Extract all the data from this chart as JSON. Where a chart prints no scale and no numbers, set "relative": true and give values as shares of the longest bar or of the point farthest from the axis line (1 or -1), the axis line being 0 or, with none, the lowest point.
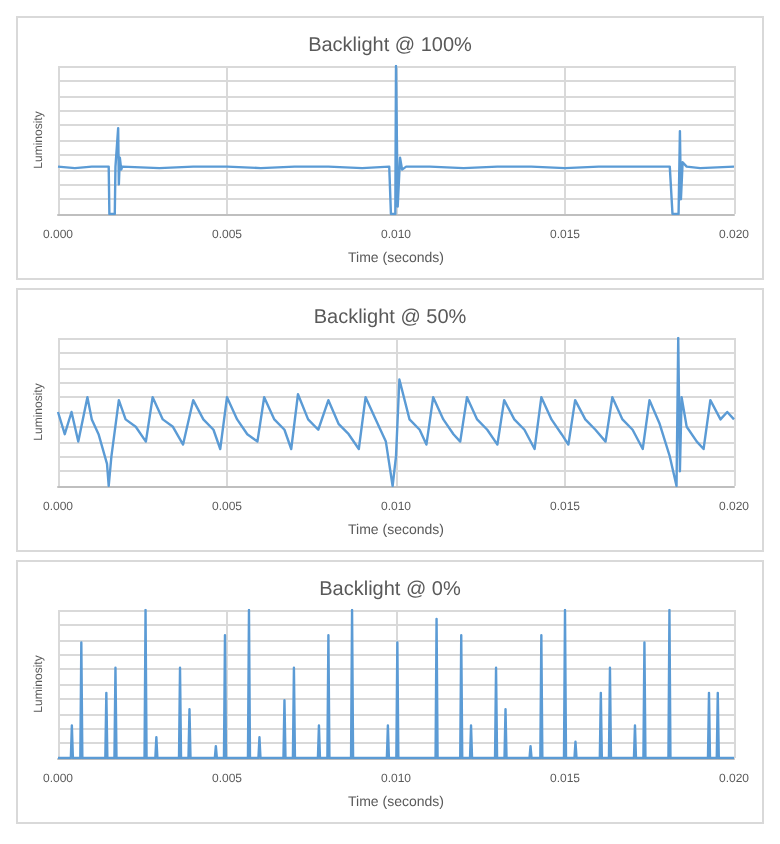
{
  "chart_data": [
    {
      "type": "line",
      "title": "Backlight @ 100%",
      "xlabel": "Time (seconds)",
      "ylabel": "Luminosity",
      "relative": true,
      "color": "#5b9bd5",
      "grid": true,
      "xlim": [
        0,
        0.02
      ],
      "xticks": [
        {
          "value": 0,
          "label": "0.000"
        },
        {
          "value": 0.005,
          "label": "0.005"
        },
        {
          "value": 0.01,
          "label": "0.010"
        },
        {
          "value": 0.015,
          "label": "0.015"
        },
        {
          "value": 0.02,
          "label": "0.020"
        }
      ],
      "x": [
        0,
        0.0005,
        0.001,
        0.0015,
        0.00152,
        0.00168,
        0.0017,
        0.00178,
        0.0018,
        0.00183,
        0.00187,
        0.0019,
        0.003,
        0.004,
        0.005,
        0.006,
        0.007,
        0.008,
        0.009,
        0.0098,
        0.00985,
        0.00998,
        0.01,
        0.01005,
        0.01012,
        0.01018,
        0.0103,
        0.011,
        0.012,
        0.013,
        0.014,
        0.015,
        0.016,
        0.017,
        0.0181,
        0.01818,
        0.01836,
        0.0184,
        0.01843,
        0.01848,
        0.0186,
        0.019,
        0.02
      ],
      "values": [
        0.32,
        0.31,
        0.32,
        0.32,
        0,
        0,
        0.32,
        0.58,
        0.2,
        0.38,
        0.3,
        0.32,
        0.31,
        0.32,
        0.32,
        0.31,
        0.32,
        0.32,
        0.31,
        0.32,
        0,
        0,
        1,
        0.05,
        0.38,
        0.3,
        0.32,
        0.32,
        0.31,
        0.32,
        0.32,
        0.31,
        0.32,
        0.32,
        0.32,
        0,
        0,
        0.56,
        0.1,
        0.35,
        0.32,
        0.31,
        0.32
      ]
    },
    {
      "type": "line",
      "title": "Backlight @ 50%",
      "xlabel": "Time (seconds)",
      "ylabel": "Luminosity",
      "relative": true,
      "color": "#5b9bd5",
      "grid": true,
      "xlim": [
        0,
        0.02
      ],
      "xticks": [
        {
          "value": 0,
          "label": "0.000"
        },
        {
          "value": 0.005,
          "label": "0.005"
        },
        {
          "value": 0.01,
          "label": "0.010"
        },
        {
          "value": 0.015,
          "label": "0.015"
        },
        {
          "value": 0.02,
          "label": "0.020"
        }
      ],
      "x": [
        0,
        0.0002,
        0.0004,
        0.0006,
        0.00087,
        0.001,
        0.0012,
        0.00145,
        0.0015,
        0.00158,
        0.0018,
        0.002,
        0.0023,
        0.0026,
        0.0028,
        0.0031,
        0.0034,
        0.0037,
        0.004,
        0.0043,
        0.0046,
        0.0048,
        0.005,
        0.0053,
        0.0056,
        0.0059,
        0.0061,
        0.0064,
        0.0067,
        0.0069,
        0.0071,
        0.0074,
        0.0077,
        0.008,
        0.0083,
        0.0086,
        0.0089,
        0.0091,
        0.0094,
        0.0097,
        0.0099,
        0.01,
        0.0101,
        0.0104,
        0.0107,
        0.0109,
        0.0111,
        0.0114,
        0.0117,
        0.0119,
        0.0121,
        0.0124,
        0.0127,
        0.013,
        0.0132,
        0.0135,
        0.0138,
        0.0141,
        0.0143,
        0.0146,
        0.0149,
        0.0151,
        0.0153,
        0.0156,
        0.0159,
        0.0162,
        0.0164,
        0.0167,
        0.017,
        0.0173,
        0.0175,
        0.0178,
        0.0181,
        0.0183,
        0.01835,
        0.0184,
        0.01845,
        0.0186,
        0.0189,
        0.0191,
        0.0193,
        0.0196,
        0.0198,
        0.02
      ],
      "values": [
        0.5,
        0.35,
        0.5,
        0.3,
        0.6,
        0.45,
        0.35,
        0.15,
        0,
        0.2,
        0.58,
        0.45,
        0.4,
        0.3,
        0.6,
        0.45,
        0.4,
        0.28,
        0.58,
        0.45,
        0.38,
        0.25,
        0.6,
        0.45,
        0.35,
        0.3,
        0.6,
        0.45,
        0.38,
        0.25,
        0.62,
        0.45,
        0.38,
        0.58,
        0.42,
        0.35,
        0.25,
        0.6,
        0.45,
        0.3,
        0,
        0.2,
        0.72,
        0.45,
        0.38,
        0.28,
        0.6,
        0.45,
        0.35,
        0.3,
        0.6,
        0.45,
        0.38,
        0.28,
        0.58,
        0.45,
        0.38,
        0.25,
        0.6,
        0.45,
        0.35,
        0.28,
        0.58,
        0.45,
        0.38,
        0.3,
        0.6,
        0.45,
        0.38,
        0.25,
        0.58,
        0.42,
        0.2,
        0,
        1,
        0.1,
        0.6,
        0.4,
        0.3,
        0.25,
        0.58,
        0.45,
        0.5,
        0.45
      ]
    },
    {
      "type": "line",
      "title": "Backlight @ 0%",
      "xlabel": "Time (seconds)",
      "ylabel": "Luminosity",
      "relative": true,
      "color": "#5b9bd5",
      "grid": true,
      "xlim": [
        0,
        0.02
      ],
      "xticks": [
        {
          "value": 0,
          "label": "0.000"
        },
        {
          "value": 0.005,
          "label": "0.005"
        },
        {
          "value": 0.01,
          "label": "0.010"
        },
        {
          "value": 0.015,
          "label": "0.015"
        },
        {
          "value": 0.02,
          "label": "0.020"
        }
      ],
      "x": [
        0,
        0.00038,
        0.00041,
        0.00044,
        0.00066,
        0.00069,
        0.00072,
        0.0014,
        0.00143,
        0.00146,
        0.00167,
        0.0017,
        0.00173,
        0.00256,
        0.00259,
        0.00262,
        0.00288,
        0.00291,
        0.00294,
        0.00358,
        0.00361,
        0.00364,
        0.00386,
        0.00389,
        0.00392,
        0.00464,
        0.00467,
        0.0047,
        0.00491,
        0.00494,
        0.00497,
        0.00562,
        0.00565,
        0.00568,
        0.00593,
        0.00596,
        0.00599,
        0.00667,
        0.0067,
        0.00673,
        0.00695,
        0.00698,
        0.00701,
        0.00769,
        0.00772,
        0.00775,
        0.00797,
        0.008,
        0.00803,
        0.00867,
        0.0087,
        0.00873,
        0.00973,
        0.00976,
        0.00979,
        0.01001,
        0.01004,
        0.01007,
        0.01117,
        0.0112,
        0.01123,
        0.0119,
        0.01193,
        0.01196,
        0.01219,
        0.01222,
        0.01225,
        0.01293,
        0.01296,
        0.01299,
        0.01321,
        0.01324,
        0.01327,
        0.01395,
        0.01398,
        0.01401,
        0.01427,
        0.0143,
        0.01433,
        0.01497,
        0.015,
        0.01503,
        0.01528,
        0.01531,
        0.01534,
        0.01603,
        0.01606,
        0.01609,
        0.0163,
        0.01633,
        0.01636,
        0.01704,
        0.01707,
        0.0171,
        0.01732,
        0.01735,
        0.01738,
        0.01806,
        0.01809,
        0.01812,
        0.01923,
        0.01926,
        0.01929,
        0.01949,
        0.01952,
        0.01955,
        0.02
      ],
      "values": [
        0,
        0,
        0.22,
        0,
        0,
        0.78,
        0,
        0,
        0.44,
        0,
        0,
        0.61,
        0,
        0,
        1,
        0,
        0,
        0.14,
        0,
        0,
        0.61,
        0,
        0,
        0.33,
        0,
        0,
        0.08,
        0,
        0,
        0.83,
        0,
        0,
        1,
        0,
        0,
        0.14,
        0,
        0,
        0.39,
        0,
        0,
        0.61,
        0,
        0,
        0.22,
        0,
        0,
        0.83,
        0,
        0,
        1,
        0,
        0,
        0.22,
        0,
        0,
        0.78,
        0,
        0,
        0.94,
        0,
        0,
        0.83,
        0,
        0,
        0.22,
        0,
        0,
        0.61,
        0,
        0,
        0.33,
        0,
        0,
        0.08,
        0,
        0,
        0.83,
        0,
        0,
        1,
        0,
        0,
        0.11,
        0,
        0,
        0.44,
        0,
        0,
        0.61,
        0,
        0,
        0.22,
        0,
        0,
        0.78,
        0,
        0,
        1,
        0,
        0,
        0.44,
        0,
        0,
        0.44,
        0,
        0
      ]
    }
  ]
}
